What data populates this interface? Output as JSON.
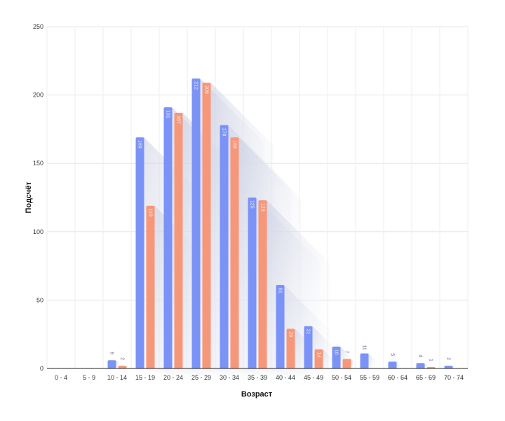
{
  "chart_data": {
    "type": "bar",
    "xlabel": "Возраст",
    "ylabel": "Подсчёт",
    "ylim": [
      0,
      250
    ],
    "yticks": [
      0,
      50,
      100,
      150,
      200,
      250
    ],
    "categories": [
      "0 - 4",
      "5 - 9",
      "10 - 14",
      "15 - 19",
      "20 - 24",
      "25 - 29",
      "30 - 34",
      "35 - 39",
      "40 - 44",
      "45 - 49",
      "50 - 54",
      "55 - 59",
      "60 - 64",
      "65 - 69",
      "70 - 74"
    ],
    "series": [
      {
        "color": "#7b93f7",
        "values": [
          null,
          null,
          6,
          169,
          191,
          212,
          178,
          125,
          61,
          31,
          16,
          11,
          5,
          4,
          2
        ]
      },
      {
        "color": "#f7977a",
        "values": [
          null,
          null,
          2,
          119,
          187,
          209,
          169,
          123,
          29,
          14,
          7,
          null,
          null,
          1,
          null
        ]
      }
    ],
    "data_labels": true,
    "grid": true,
    "legend": "none"
  }
}
